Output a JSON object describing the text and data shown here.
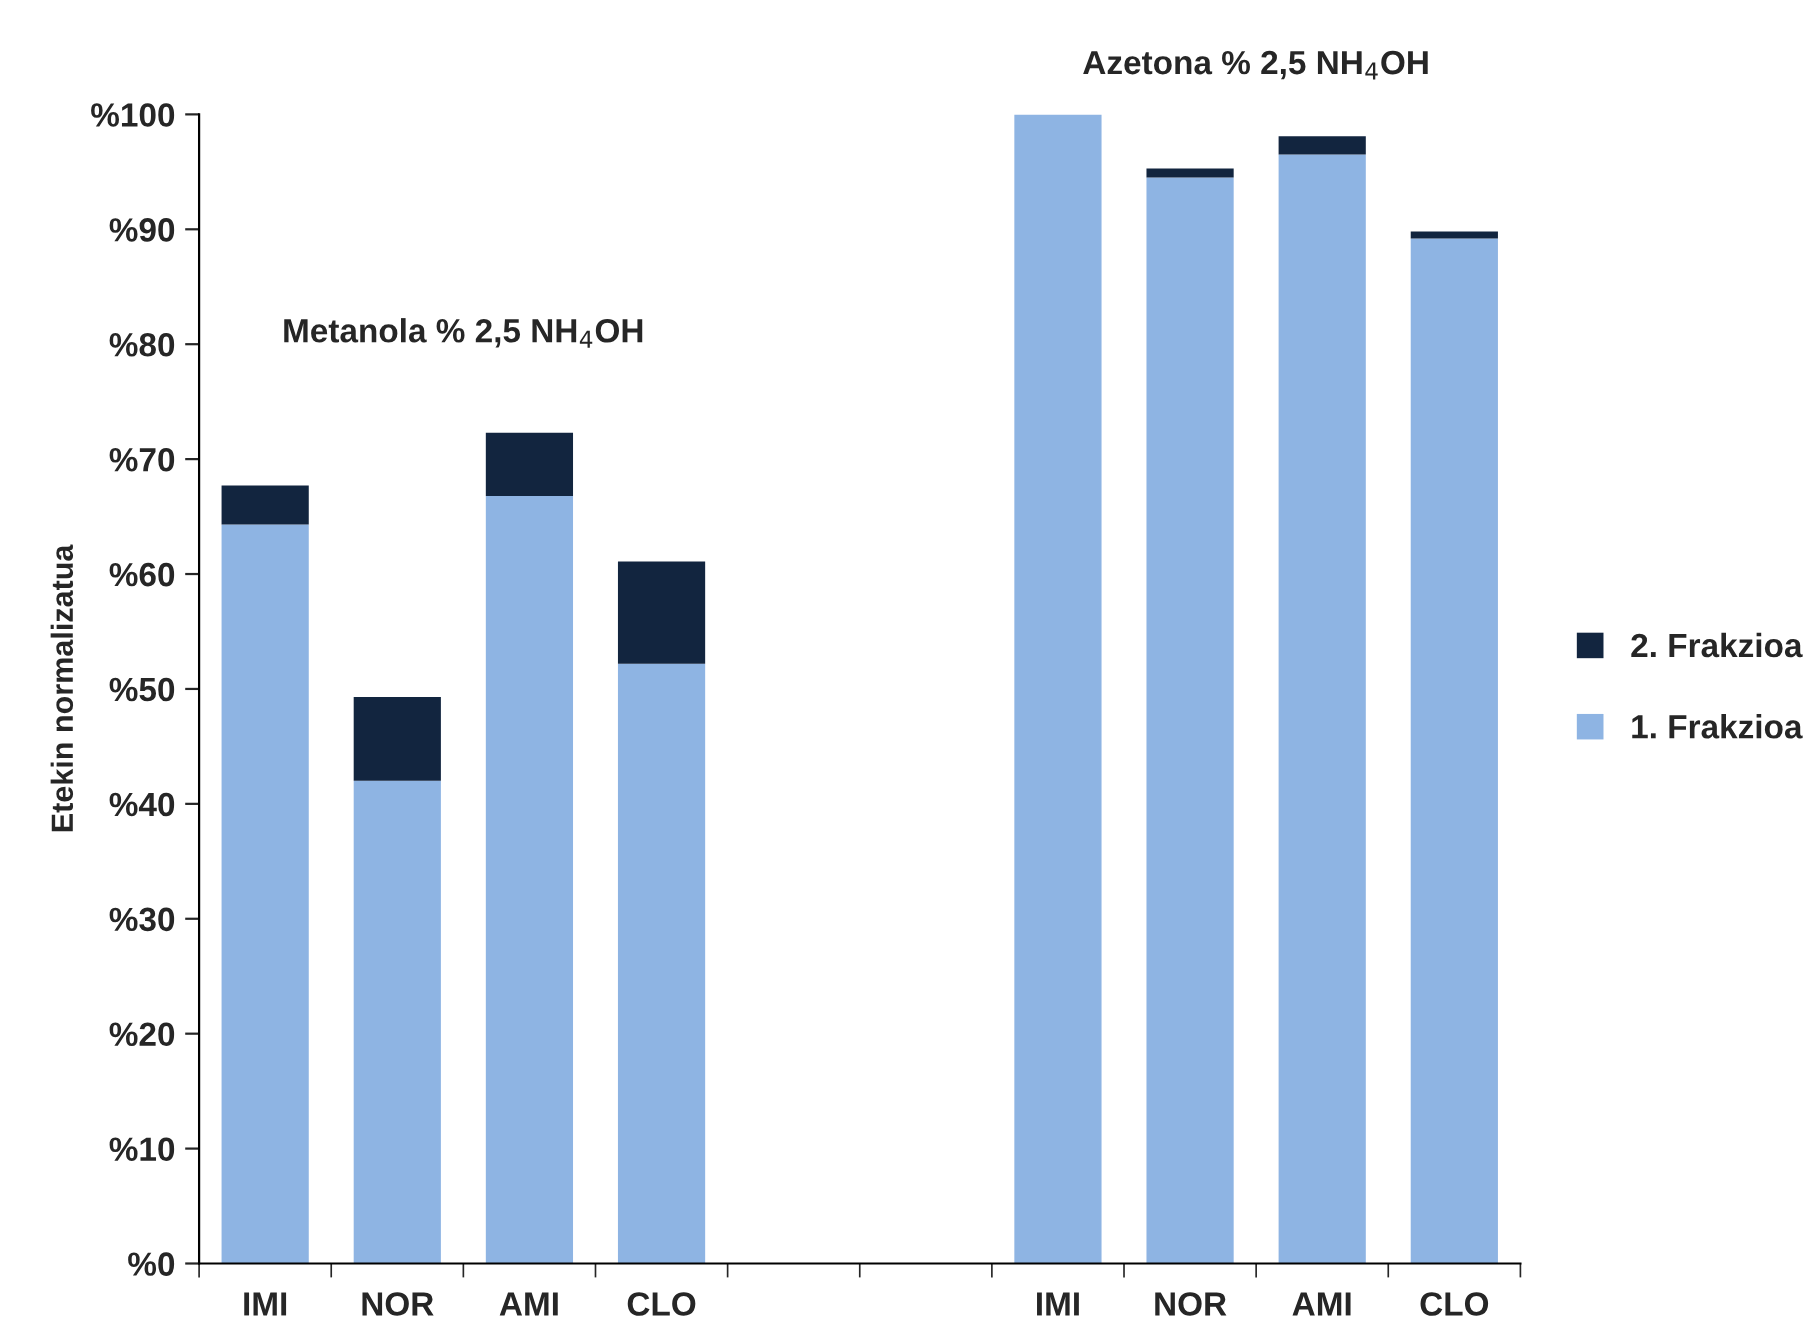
{
  "chart_data": {
    "type": "bar",
    "stacked": true,
    "categories": [
      "IMI",
      "NOR",
      "AMI",
      "CLO",
      null,
      null,
      "IMI",
      "NOR",
      "AMI",
      "CLO"
    ],
    "series": [
      {
        "name": "1. Frakzioa",
        "color": "#8eb4e3",
        "values": [
          64.3,
          42.0,
          66.8,
          52.2,
          null,
          null,
          100,
          94.5,
          96.5,
          89.2
        ]
      },
      {
        "name": "2. Frakzioa",
        "color": "#12253f",
        "values": [
          3.4,
          7.3,
          5.5,
          8.9,
          null,
          null,
          null,
          0.8,
          1.6,
          0.6
        ]
      }
    ],
    "ylabel": "Etekin normalizatua",
    "ylim": [
      0,
      100
    ],
    "yticks": [
      {
        "value": 0,
        "label": "%0"
      },
      {
        "value": 10,
        "label": "%10"
      },
      {
        "value": 20,
        "label": "%20"
      },
      {
        "value": 30,
        "label": "%30"
      },
      {
        "value": 40,
        "label": "%40"
      },
      {
        "value": 50,
        "label": "%50"
      },
      {
        "value": 60,
        "label": "%60"
      },
      {
        "value": 70,
        "label": "%70"
      },
      {
        "value": 80,
        "label": "%80"
      },
      {
        "value": 90,
        "label": "%90"
      },
      {
        "value": 100,
        "label": "%100"
      }
    ],
    "annotations": [
      "Metanola % 2,5 NH$_{4}$OH",
      "Azetona % 2,5 NH$_{4}$OH"
    ],
    "grid": false,
    "legend": "right"
  }
}
